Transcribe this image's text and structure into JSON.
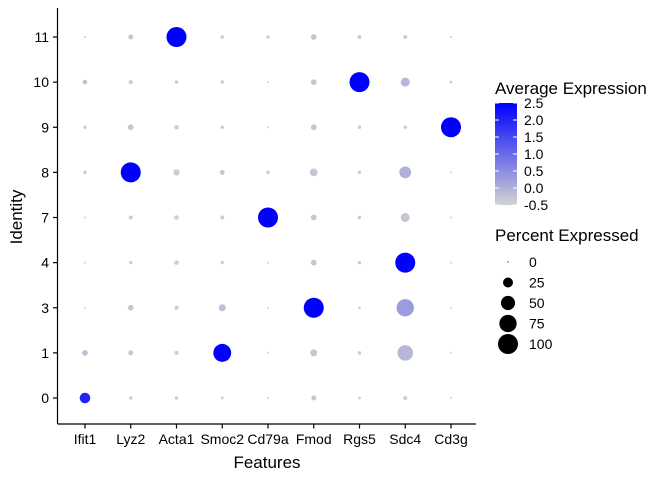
{
  "chart_data": {
    "type": "dotplot",
    "title": "",
    "xlabel": "Features",
    "ylabel": "Identity",
    "features": [
      "Ifit1",
      "Lyz2",
      "Acta1",
      "Smoc2",
      "Cd79a",
      "Fmod",
      "Rgs5",
      "Sdc4",
      "Cd3g"
    ],
    "identities": [
      "0",
      "1",
      "3",
      "4",
      "7",
      "8",
      "9",
      "10",
      "11"
    ],
    "grid": false,
    "legend_position": "right",
    "color_scale": {
      "low": "#D3D3D3",
      "high": "#0000FF",
      "min": -0.5,
      "max": 2.5
    },
    "points": [
      {
        "identity": "11",
        "feature": "Ifit1",
        "avg_exp": -0.5,
        "pct": 1
      },
      {
        "identity": "11",
        "feature": "Lyz2",
        "avg_exp": -0.3,
        "pct": 6
      },
      {
        "identity": "11",
        "feature": "Acta1",
        "avg_exp": 2.5,
        "pct": 100
      },
      {
        "identity": "11",
        "feature": "Smoc2",
        "avg_exp": -0.4,
        "pct": 3
      },
      {
        "identity": "11",
        "feature": "Cd79a",
        "avg_exp": -0.4,
        "pct": 3
      },
      {
        "identity": "11",
        "feature": "Fmod",
        "avg_exp": -0.3,
        "pct": 8
      },
      {
        "identity": "11",
        "feature": "Rgs5",
        "avg_exp": -0.4,
        "pct": 4
      },
      {
        "identity": "11",
        "feature": "Sdc4",
        "avg_exp": -0.4,
        "pct": 4
      },
      {
        "identity": "11",
        "feature": "Cd3g",
        "avg_exp": -0.5,
        "pct": 1
      },
      {
        "identity": "10",
        "feature": "Ifit1",
        "avg_exp": -0.2,
        "pct": 5
      },
      {
        "identity": "10",
        "feature": "Lyz2",
        "avg_exp": -0.4,
        "pct": 4
      },
      {
        "identity": "10",
        "feature": "Acta1",
        "avg_exp": -0.4,
        "pct": 3
      },
      {
        "identity": "10",
        "feature": "Smoc2",
        "avg_exp": -0.4,
        "pct": 3
      },
      {
        "identity": "10",
        "feature": "Cd79a",
        "avg_exp": -0.5,
        "pct": 1
      },
      {
        "identity": "10",
        "feature": "Fmod",
        "avg_exp": -0.3,
        "pct": 8
      },
      {
        "identity": "10",
        "feature": "Rgs5",
        "avg_exp": 2.5,
        "pct": 100
      },
      {
        "identity": "10",
        "feature": "Sdc4",
        "avg_exp": -0.1,
        "pct": 20
      },
      {
        "identity": "10",
        "feature": "Cd3g",
        "avg_exp": -0.4,
        "pct": 2
      },
      {
        "identity": "9",
        "feature": "Ifit1",
        "avg_exp": -0.4,
        "pct": 3
      },
      {
        "identity": "9",
        "feature": "Lyz2",
        "avg_exp": -0.3,
        "pct": 8
      },
      {
        "identity": "9",
        "feature": "Acta1",
        "avg_exp": -0.4,
        "pct": 5
      },
      {
        "identity": "9",
        "feature": "Smoc2",
        "avg_exp": -0.4,
        "pct": 3
      },
      {
        "identity": "9",
        "feature": "Cd79a",
        "avg_exp": -0.5,
        "pct": 1
      },
      {
        "identity": "9",
        "feature": "Fmod",
        "avg_exp": -0.3,
        "pct": 8
      },
      {
        "identity": "9",
        "feature": "Rgs5",
        "avg_exp": -0.4,
        "pct": 3
      },
      {
        "identity": "9",
        "feature": "Sdc4",
        "avg_exp": -0.4,
        "pct": 3
      },
      {
        "identity": "9",
        "feature": "Cd3g",
        "avg_exp": 2.5,
        "pct": 100
      },
      {
        "identity": "8",
        "feature": "Ifit1",
        "avg_exp": -0.4,
        "pct": 3
      },
      {
        "identity": "8",
        "feature": "Lyz2",
        "avg_exp": 2.5,
        "pct": 100
      },
      {
        "identity": "8",
        "feature": "Acta1",
        "avg_exp": -0.4,
        "pct": 10
      },
      {
        "identity": "8",
        "feature": "Smoc2",
        "avg_exp": -0.3,
        "pct": 6
      },
      {
        "identity": "8",
        "feature": "Cd79a",
        "avg_exp": -0.4,
        "pct": 3
      },
      {
        "identity": "8",
        "feature": "Fmod",
        "avg_exp": -0.3,
        "pct": 15
      },
      {
        "identity": "8",
        "feature": "Rgs5",
        "avg_exp": -0.4,
        "pct": 3
      },
      {
        "identity": "8",
        "feature": "Sdc4",
        "avg_exp": 0.0,
        "pct": 35
      },
      {
        "identity": "8",
        "feature": "Cd3g",
        "avg_exp": -0.5,
        "pct": 1
      },
      {
        "identity": "7",
        "feature": "Ifit1",
        "avg_exp": -0.5,
        "pct": 1
      },
      {
        "identity": "7",
        "feature": "Lyz2",
        "avg_exp": -0.4,
        "pct": 4
      },
      {
        "identity": "7",
        "feature": "Acta1",
        "avg_exp": -0.4,
        "pct": 5
      },
      {
        "identity": "7",
        "feature": "Smoc2",
        "avg_exp": -0.4,
        "pct": 4
      },
      {
        "identity": "7",
        "feature": "Cd79a",
        "avg_exp": 2.5,
        "pct": 100
      },
      {
        "identity": "7",
        "feature": "Fmod",
        "avg_exp": -0.3,
        "pct": 8
      },
      {
        "identity": "7",
        "feature": "Rgs5",
        "avg_exp": -0.4,
        "pct": 3
      },
      {
        "identity": "7",
        "feature": "Sdc4",
        "avg_exp": -0.3,
        "pct": 20
      },
      {
        "identity": "7",
        "feature": "Cd3g",
        "avg_exp": -0.5,
        "pct": 1
      },
      {
        "identity": "4",
        "feature": "Ifit1",
        "avg_exp": -0.5,
        "pct": 1
      },
      {
        "identity": "4",
        "feature": "Lyz2",
        "avg_exp": -0.4,
        "pct": 3
      },
      {
        "identity": "4",
        "feature": "Acta1",
        "avg_exp": -0.4,
        "pct": 5
      },
      {
        "identity": "4",
        "feature": "Smoc2",
        "avg_exp": -0.4,
        "pct": 3
      },
      {
        "identity": "4",
        "feature": "Cd79a",
        "avg_exp": -0.5,
        "pct": 1
      },
      {
        "identity": "4",
        "feature": "Fmod",
        "avg_exp": -0.3,
        "pct": 8
      },
      {
        "identity": "4",
        "feature": "Rgs5",
        "avg_exp": -0.4,
        "pct": 3
      },
      {
        "identity": "4",
        "feature": "Sdc4",
        "avg_exp": 2.5,
        "pct": 100
      },
      {
        "identity": "4",
        "feature": "Cd3g",
        "avg_exp": -0.5,
        "pct": 1
      },
      {
        "identity": "3",
        "feature": "Ifit1",
        "avg_exp": -0.5,
        "pct": 1
      },
      {
        "identity": "3",
        "feature": "Lyz2",
        "avg_exp": -0.3,
        "pct": 8
      },
      {
        "identity": "3",
        "feature": "Acta1",
        "avg_exp": -0.4,
        "pct": 4
      },
      {
        "identity": "3",
        "feature": "Smoc2",
        "avg_exp": -0.2,
        "pct": 12
      },
      {
        "identity": "3",
        "feature": "Cd79a",
        "avg_exp": -0.5,
        "pct": 1
      },
      {
        "identity": "3",
        "feature": "Fmod",
        "avg_exp": 2.5,
        "pct": 100
      },
      {
        "identity": "3",
        "feature": "Rgs5",
        "avg_exp": -0.4,
        "pct": 2
      },
      {
        "identity": "3",
        "feature": "Sdc4",
        "avg_exp": 0.3,
        "pct": 75
      },
      {
        "identity": "3",
        "feature": "Cd3g",
        "avg_exp": -0.5,
        "pct": 1
      },
      {
        "identity": "1",
        "feature": "Ifit1",
        "avg_exp": -0.2,
        "pct": 8
      },
      {
        "identity": "1",
        "feature": "Lyz2",
        "avg_exp": -0.3,
        "pct": 6
      },
      {
        "identity": "1",
        "feature": "Acta1",
        "avg_exp": -0.4,
        "pct": 4
      },
      {
        "identity": "1",
        "feature": "Smoc2",
        "avg_exp": 2.5,
        "pct": 80
      },
      {
        "identity": "1",
        "feature": "Cd79a",
        "avg_exp": -0.5,
        "pct": 1
      },
      {
        "identity": "1",
        "feature": "Fmod",
        "avg_exp": -0.3,
        "pct": 12
      },
      {
        "identity": "1",
        "feature": "Rgs5",
        "avg_exp": -0.4,
        "pct": 3
      },
      {
        "identity": "1",
        "feature": "Sdc4",
        "avg_exp": -0.1,
        "pct": 60
      },
      {
        "identity": "1",
        "feature": "Cd3g",
        "avg_exp": -0.5,
        "pct": 1
      },
      {
        "identity": "0",
        "feature": "Ifit1",
        "avg_exp": 2.0,
        "pct": 28
      },
      {
        "identity": "0",
        "feature": "Lyz2",
        "avg_exp": -0.4,
        "pct": 3
      },
      {
        "identity": "0",
        "feature": "Acta1",
        "avg_exp": -0.4,
        "pct": 3
      },
      {
        "identity": "0",
        "feature": "Smoc2",
        "avg_exp": -0.4,
        "pct": 2
      },
      {
        "identity": "0",
        "feature": "Cd79a",
        "avg_exp": -0.5,
        "pct": 1
      },
      {
        "identity": "0",
        "feature": "Fmod",
        "avg_exp": -0.3,
        "pct": 6
      },
      {
        "identity": "0",
        "feature": "Rgs5",
        "avg_exp": -0.4,
        "pct": 2
      },
      {
        "identity": "0",
        "feature": "Sdc4",
        "avg_exp": -0.4,
        "pct": 4
      },
      {
        "identity": "0",
        "feature": "Cd3g",
        "avg_exp": -0.5,
        "pct": 1
      }
    ],
    "legend_color": {
      "title": "Average Expression",
      "ticks": [
        "2.5",
        "2.0",
        "1.5",
        "1.0",
        "0.5",
        "0.0",
        "-0.5"
      ],
      "tick_values": [
        2.5,
        2.0,
        1.5,
        1.0,
        0.5,
        0.0,
        -0.5
      ]
    },
    "legend_size": {
      "title": "Percent Expressed",
      "labels": [
        "0",
        "25",
        "50",
        "75",
        "100"
      ],
      "values": [
        0,
        25,
        50,
        75,
        100
      ]
    }
  }
}
